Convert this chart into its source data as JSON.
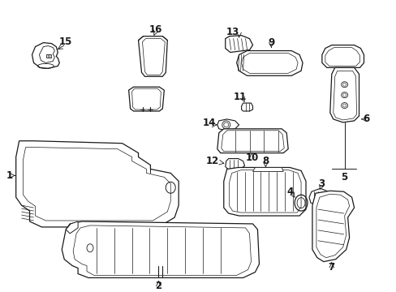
{
  "background_color": "#ffffff",
  "line_color": "#1a1a1a",
  "figsize": [
    4.89,
    3.6
  ],
  "dpi": 100
}
